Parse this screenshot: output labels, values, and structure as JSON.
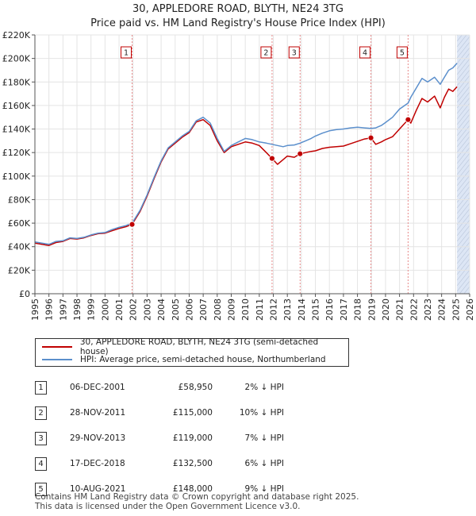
{
  "header": {
    "title_line1": "30, APPLEDORE ROAD, BLYTH, NE24 3TG",
    "title_line2": "Price paid vs. HM Land Registry's House Price Index (HPI)"
  },
  "legend": {
    "series1_label": "30, APPLEDORE ROAD, BLYTH, NE24 3TG (semi-detached house)",
    "series2_label": "HPI: Average price, semi-detached house, Northumberland"
  },
  "colors": {
    "price_paid": "#c00000",
    "hpi": "#5b8fcc",
    "shade": "#dde6f5"
  },
  "sales": [
    {
      "num": "1",
      "date": "06-DEC-2001",
      "price": "£58,950",
      "hpi": "2% ↓ HPI"
    },
    {
      "num": "2",
      "date": "28-NOV-2011",
      "price": "£115,000",
      "hpi": "10% ↓ HPI"
    },
    {
      "num": "3",
      "date": "29-NOV-2013",
      "price": "£119,000",
      "hpi": "7% ↓ HPI"
    },
    {
      "num": "4",
      "date": "17-DEC-2018",
      "price": "£132,500",
      "hpi": "6% ↓ HPI"
    },
    {
      "num": "5",
      "date": "10-AUG-2021",
      "price": "£148,000",
      "hpi": "9% ↓ HPI"
    }
  ],
  "footer": {
    "line1": "Contains HM Land Registry data © Crown copyright and database right 2025.",
    "line2": "This data is licensed under the Open Government Licence v3.0."
  },
  "chart_data": {
    "type": "line",
    "title": "30, APPLEDORE ROAD, BLYTH, NE24 3TG — Price paid vs. HM Land Registry's House Price Index (HPI)",
    "xlim": [
      1995,
      2026
    ],
    "ylim": [
      0,
      220000
    ],
    "x_ticks": [
      1995,
      1996,
      1997,
      1998,
      1999,
      2000,
      2001,
      2002,
      2003,
      2004,
      2005,
      2006,
      2007,
      2008,
      2009,
      2010,
      2011,
      2012,
      2013,
      2014,
      2015,
      2016,
      2017,
      2018,
      2019,
      2020,
      2021,
      2022,
      2023,
      2024,
      2025,
      2026
    ],
    "y_ticks": [
      {
        "value": 0,
        "label": "£0"
      },
      {
        "value": 20000,
        "label": "£20K"
      },
      {
        "value": 40000,
        "label": "£40K"
      },
      {
        "value": 60000,
        "label": "£60K"
      },
      {
        "value": 80000,
        "label": "£80K"
      },
      {
        "value": 100000,
        "label": "£100K"
      },
      {
        "value": 120000,
        "label": "£120K"
      },
      {
        "value": 140000,
        "label": "£140K"
      },
      {
        "value": 160000,
        "label": "£160K"
      },
      {
        "value": 180000,
        "label": "£180K"
      },
      {
        "value": 200000,
        "label": "£200K"
      },
      {
        "value": 220000,
        "label": "£220K"
      }
    ],
    "grid": true,
    "shaded_region": [
      2025.1,
      2026
    ],
    "series": [
      {
        "name": "30, APPLEDORE ROAD, BLYTH, NE24 3TG (semi-detached house)",
        "color": "#c00000",
        "x": [
          1995,
          1995.5,
          1996,
          1996.5,
          1997,
          1997.5,
          1998,
          1998.5,
          1999,
          1999.5,
          2000,
          2000.5,
          2001,
          2001.5,
          2001.93,
          2002.5,
          2003,
          2003.5,
          2004,
          2004.5,
          2005,
          2005.5,
          2006,
          2006.5,
          2007,
          2007.5,
          2008,
          2008.5,
          2009,
          2009.5,
          2010,
          2010.5,
          2011,
          2011.5,
          2011.91,
          2012.3,
          2012.7,
          2013,
          2013.5,
          2013.91,
          2014.3,
          2014.7,
          2015,
          2015.5,
          2016,
          2016.5,
          2017,
          2017.5,
          2018,
          2018.5,
          2018.96,
          2019.3,
          2019.7,
          2020,
          2020.5,
          2021,
          2021.61,
          2021.8,
          2022.2,
          2022.6,
          2023,
          2023.5,
          2023.9,
          2024.2,
          2024.5,
          2024.8,
          2025.1
        ],
        "y": [
          43000,
          42000,
          41000,
          43500,
          44500,
          47000,
          46500,
          47500,
          49500,
          51000,
          51500,
          53500,
          55500,
          57000,
          58950,
          70000,
          83000,
          98000,
          112000,
          123000,
          128000,
          133000,
          137000,
          146000,
          148000,
          143000,
          130000,
          120000,
          125000,
          127000,
          129000,
          128000,
          126000,
          120000,
          115000,
          110000,
          114000,
          117000,
          116000,
          119000,
          120000,
          121000,
          121500,
          123500,
          124500,
          125000,
          125500,
          127500,
          129500,
          131500,
          132500,
          127000,
          129000,
          131000,
          133500,
          140000,
          148000,
          145000,
          156000,
          166000,
          163000,
          168000,
          158000,
          167000,
          174000,
          172000,
          176000
        ]
      },
      {
        "name": "HPI: Average price, semi-detached house, Northumberland",
        "color": "#5b8fcc",
        "x": [
          1995,
          1995.5,
          1996,
          1996.5,
          1997,
          1997.5,
          1998,
          1998.5,
          1999,
          1999.5,
          2000,
          2000.5,
          2001,
          2001.5,
          2001.93,
          2002.5,
          2003,
          2003.5,
          2004,
          2004.5,
          2005,
          2005.5,
          2006,
          2006.5,
          2007,
          2007.5,
          2008,
          2008.5,
          2009,
          2009.5,
          2010,
          2010.5,
          2011,
          2011.5,
          2011.91,
          2012.3,
          2012.7,
          2013,
          2013.5,
          2013.91,
          2014.3,
          2014.7,
          2015,
          2015.5,
          2016,
          2016.5,
          2017,
          2017.5,
          2018,
          2018.5,
          2018.96,
          2019.3,
          2019.7,
          2020,
          2020.5,
          2021,
          2021.61,
          2021.8,
          2022.2,
          2022.6,
          2023,
          2023.5,
          2023.9,
          2024.2,
          2024.5,
          2024.8,
          2025.1
        ],
        "y": [
          44000,
          43000,
          42000,
          44500,
          45000,
          47500,
          47000,
          48000,
          50000,
          51500,
          52000,
          54500,
          56500,
          58000,
          60000,
          71000,
          84000,
          99000,
          113000,
          124000,
          129000,
          134000,
          138000,
          147000,
          150000,
          145000,
          132000,
          121000,
          126000,
          129000,
          132000,
          131000,
          129000,
          128000,
          127000,
          126000,
          125000,
          126000,
          126500,
          128000,
          130000,
          132000,
          134000,
          136500,
          138500,
          139500,
          140000,
          141000,
          141500,
          141000,
          140500,
          141000,
          143000,
          145500,
          150000,
          157000,
          162000,
          167000,
          175000,
          183000,
          180000,
          184000,
          178000,
          184000,
          190000,
          192000,
          196000
        ]
      }
    ],
    "annotations": [
      {
        "label": "1",
        "x": 2001.93,
        "y": 58950
      },
      {
        "label": "2",
        "x": 2011.91,
        "y": 115000
      },
      {
        "label": "3",
        "x": 2013.91,
        "y": 119000
      },
      {
        "label": "4",
        "x": 2018.96,
        "y": 132500
      },
      {
        "label": "5",
        "x": 2021.61,
        "y": 148000
      }
    ]
  }
}
